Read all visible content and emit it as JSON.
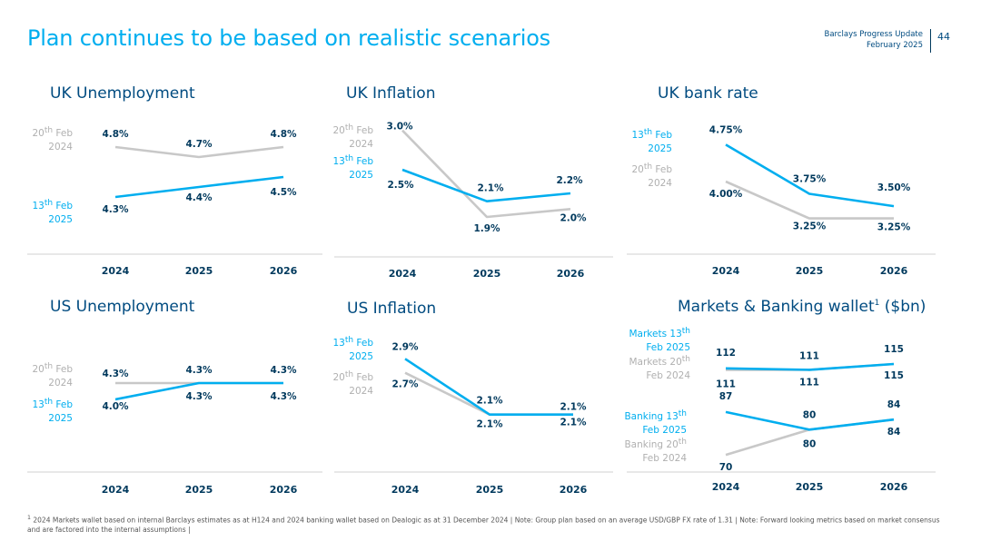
{
  "header": {
    "title": "Plan continues to be based on realistic scenarios",
    "brand_line1": "Barclays Progress Update",
    "brand_line2": "February 2025",
    "page_number": "44"
  },
  "colors": {
    "new": "#00aeef",
    "old": "#c8c8c8",
    "title": "#004b80",
    "text": "#00395d",
    "axis": "#d0d0d0"
  },
  "footnote": {
    "marker": "1",
    "text": "2024 Markets wallet based on internal Barclays estimates as at H124 and 2024 banking wallet based on Dealogic as at 31 December 2024 | Note: Group plan based on an average USD/GBP FX rate of 1.31 | Note: Forward looking metrics based on market consensus and are factored into the internal assumptions |"
  },
  "chart_data": [
    {
      "id": "uk-unemployment",
      "type": "line",
      "title": "UK Unemployment",
      "title_sup": "",
      "categories": [
        "2024",
        "2025",
        "2026"
      ],
      "ylim": [
        4.0,
        5.0
      ],
      "series": [
        {
          "name_lines": [
            "20th Feb",
            "2024"
          ],
          "style": "old",
          "values": [
            4.8,
            4.7,
            4.8
          ],
          "labels": [
            "4.8%",
            "4.7%",
            "4.8%"
          ]
        },
        {
          "name_lines": [
            "13th Feb",
            "2025"
          ],
          "style": "new",
          "values": [
            4.3,
            4.4,
            4.5
          ],
          "labels": [
            "4.3%",
            "4.4%",
            "4.5%"
          ]
        }
      ]
    },
    {
      "id": "uk-inflation",
      "type": "line",
      "title": "UK Inflation",
      "title_sup": "",
      "categories": [
        "2024",
        "2025",
        "2026"
      ],
      "ylim": [
        1.6,
        3.1
      ],
      "series": [
        {
          "name_lines": [
            "20th Feb",
            "2024"
          ],
          "style": "old",
          "values": [
            3.0,
            1.9,
            2.0
          ],
          "labels": [
            "3.0%",
            "1.9%",
            "2.0%"
          ]
        },
        {
          "name_lines": [
            "13th Feb",
            "2025"
          ],
          "style": "new",
          "values": [
            2.5,
            2.1,
            2.2
          ],
          "labels": [
            "2.5%",
            "2.1%",
            "2.2%"
          ]
        }
      ]
    },
    {
      "id": "uk-bank-rate",
      "type": "line",
      "title": "UK bank rate",
      "title_sup": "",
      "categories": [
        "2024",
        "2025",
        "2026"
      ],
      "ylim": [
        2.8,
        5.2
      ],
      "series": [
        {
          "name_lines": [
            "13th Feb",
            "2025"
          ],
          "style": "new",
          "values": [
            4.75,
            3.75,
            3.5
          ],
          "labels": [
            "4.75%",
            "3.75%",
            "3.50%"
          ]
        },
        {
          "name_lines": [
            "20th Feb",
            "2024"
          ],
          "style": "old",
          "values": [
            4.0,
            3.25,
            3.25
          ],
          "labels": [
            "4.00%",
            "3.25%",
            "3.25%"
          ]
        }
      ]
    },
    {
      "id": "us-unemployment",
      "type": "line",
      "title": "US Unemployment",
      "title_sup": "",
      "categories": [
        "2024",
        "2025",
        "2026"
      ],
      "ylim": [
        3.5,
        5.0
      ],
      "series": [
        {
          "name_lines": [
            "20th Feb",
            "2024"
          ],
          "style": "old",
          "values": [
            4.3,
            4.3,
            4.3
          ],
          "labels": [
            "4.3%",
            "4.3%",
            "4.3%"
          ]
        },
        {
          "name_lines": [
            "13th Feb",
            "2025"
          ],
          "style": "new",
          "values": [
            4.0,
            4.3,
            4.3
          ],
          "labels": [
            "4.0%",
            "4.3%",
            "4.3%"
          ]
        }
      ]
    },
    {
      "id": "us-inflation",
      "type": "line",
      "title": "US Inflation",
      "title_sup": "",
      "categories": [
        "2024",
        "2025",
        "2026"
      ],
      "ylim": [
        1.6,
        3.1
      ],
      "series": [
        {
          "name_lines": [
            "13th Feb",
            "2025"
          ],
          "style": "new",
          "values": [
            2.9,
            2.1,
            2.1
          ],
          "labels": [
            "2.9%",
            "2.1%",
            "2.1%"
          ]
        },
        {
          "name_lines": [
            "20th Feb",
            "2024"
          ],
          "style": "old",
          "values": [
            2.7,
            2.1,
            2.1
          ],
          "labels": [
            "2.7%",
            "2.1%",
            "2.1%"
          ]
        }
      ]
    },
    {
      "id": "markets-banking-wallet",
      "type": "line",
      "title": "Markets & Banking wallet",
      "title_sup": "1",
      "title_suffix": " ($bn)",
      "categories": [
        "2024",
        "2025",
        "2026"
      ],
      "series": [
        {
          "name_lines": [
            "Markets 13th",
            "Feb 2025"
          ],
          "style": "new",
          "group": "markets",
          "values": [
            112,
            111,
            115
          ],
          "labels": [
            "112",
            "111",
            "115"
          ]
        },
        {
          "name_lines": [
            "Markets 20th",
            "Feb 2024"
          ],
          "style": "old",
          "group": "markets",
          "values": [
            111,
            111,
            115
          ],
          "labels": [
            "111",
            "111",
            "115"
          ]
        },
        {
          "name_lines": [
            "Banking 13th",
            "Feb 2025"
          ],
          "style": "new",
          "group": "banking",
          "values": [
            87,
            80,
            84
          ],
          "labels": [
            "87",
            "80",
            "84"
          ]
        },
        {
          "name_lines": [
            "Banking 20th",
            "Feb 2024"
          ],
          "style": "old",
          "group": "banking",
          "values": [
            70,
            80,
            84
          ],
          "labels": [
            "70",
            "80",
            "84"
          ]
        }
      ]
    }
  ]
}
